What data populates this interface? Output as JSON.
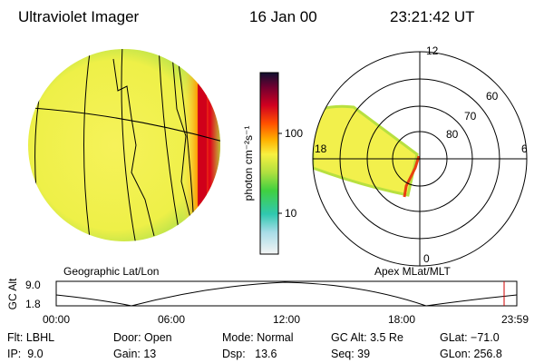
{
  "header": {
    "title": "Ultraviolet Imager",
    "date": "16 Jan 00",
    "time": "23:21:42 UT"
  },
  "left_panel": {
    "label": "Geographic Lat/Lon"
  },
  "colorbar": {
    "unit": "photon cm⁻²s⁻¹",
    "ticks": [
      "100",
      "10"
    ]
  },
  "right_panel": {
    "label": "Apex MLat/MLT",
    "mlt_labels": [
      "12",
      "6",
      "0",
      "18"
    ],
    "lat_labels": [
      "60",
      "70",
      "80"
    ]
  },
  "altitude_plot": {
    "axis_label": "GC Alt",
    "y_labels": [
      "9.0",
      "1.8"
    ],
    "x_labels": [
      "00:00",
      "06:00",
      "12:00",
      "18:00",
      "23:59"
    ]
  },
  "info": {
    "rows": [
      [
        "Flt: LBHL",
        "Door: Open",
        "Mode: Normal",
        "GC Alt: 3.5 Re",
        "GLat: −71.0"
      ],
      [
        "IP:  9.0",
        "Gain: 13",
        "Dsp:   13.6",
        "Seq: 39",
        "GLon: 256.8"
      ]
    ]
  }
}
